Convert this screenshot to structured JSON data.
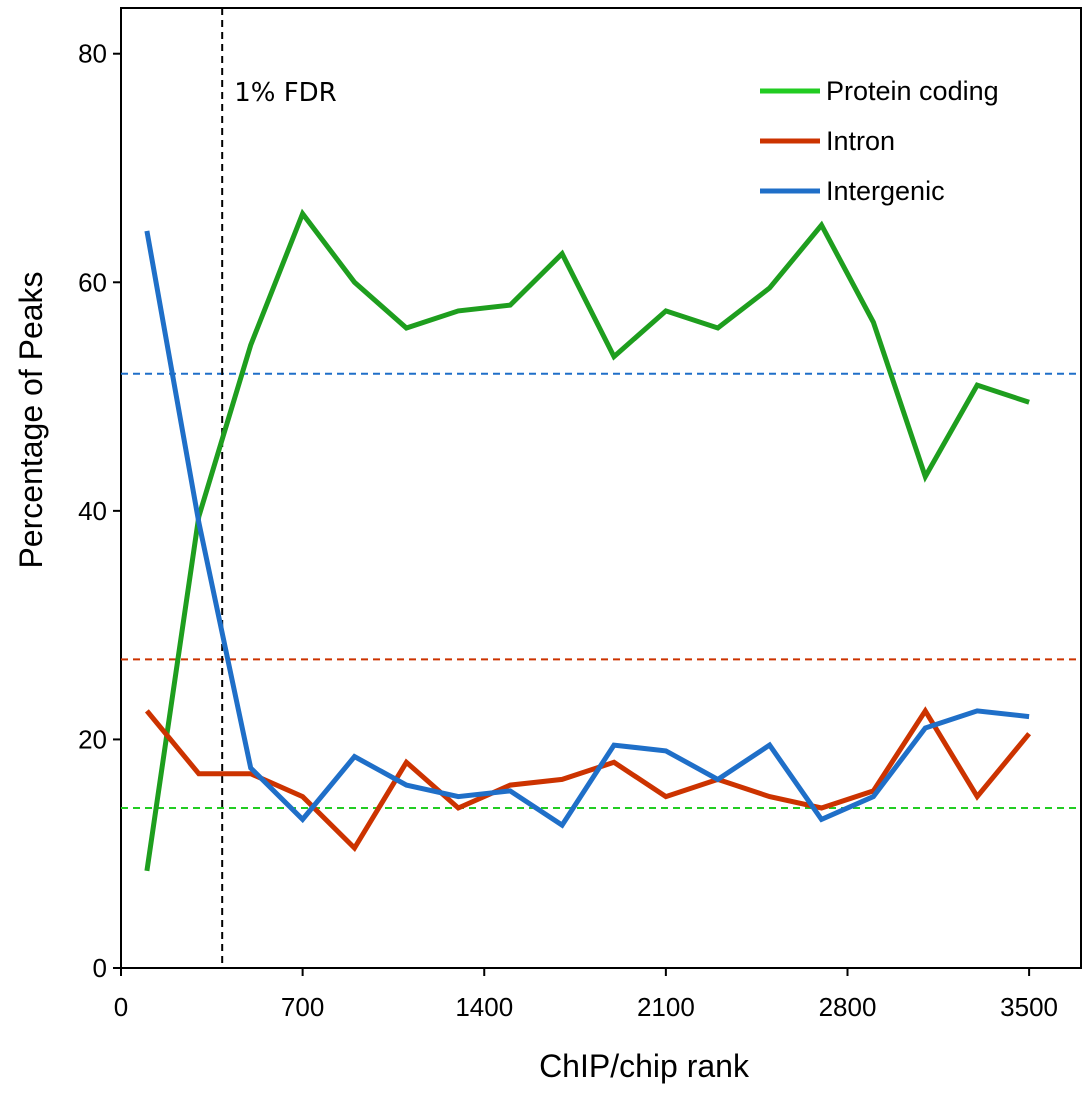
{
  "chart_data": {
    "type": "line",
    "xlabel": "ChIP/chip rank",
    "ylabel": "Percentage of Peaks",
    "xlim": [
      0,
      3700
    ],
    "ylim": [
      0,
      84
    ],
    "x_ticks": [
      0,
      700,
      1400,
      2100,
      2800,
      3500
    ],
    "y_ticks": [
      0,
      20,
      40,
      60,
      80
    ],
    "x": [
      100,
      300,
      500,
      700,
      900,
      1100,
      1300,
      1500,
      1700,
      1900,
      2100,
      2300,
      2500,
      2700,
      2900,
      3100,
      3300,
      3500
    ],
    "series": [
      {
        "name": "Protein coding",
        "color": "#1e9e1e",
        "legend_color": "#22cc22",
        "values": [
          8.5,
          39.5,
          54.5,
          66,
          60,
          56,
          57.5,
          58,
          62.5,
          53.5,
          57.5,
          56,
          59.5,
          65,
          56.5,
          43,
          51,
          49.5
        ]
      },
      {
        "name": "Intron",
        "color": "#cc3300",
        "legend_color": "#cc3300",
        "values": [
          22.5,
          17,
          17,
          15,
          10.5,
          18,
          14,
          16,
          16.5,
          18,
          15,
          16.5,
          15,
          14,
          15.5,
          22.5,
          15,
          20.5
        ]
      },
      {
        "name": "Intergenic",
        "color": "#1f6fc8",
        "legend_color": "#1f6fc8",
        "values": [
          64.5,
          39,
          17.5,
          13,
          18.5,
          16,
          15,
          15.5,
          12.5,
          19.5,
          19,
          16.5,
          19.5,
          13,
          15,
          21,
          22.5,
          22
        ]
      }
    ],
    "reference_lines": [
      {
        "axis": "y",
        "value": 52,
        "color": "#1f6fc8"
      },
      {
        "axis": "y",
        "value": 27,
        "color": "#cc3300"
      },
      {
        "axis": "y",
        "value": 14,
        "color": "#22cc22"
      }
    ],
    "annotations": [
      {
        "axis": "x",
        "value": 390,
        "color": "#000000",
        "label": "1% FDR"
      }
    ],
    "legend": "top-right",
    "grid": false
  }
}
